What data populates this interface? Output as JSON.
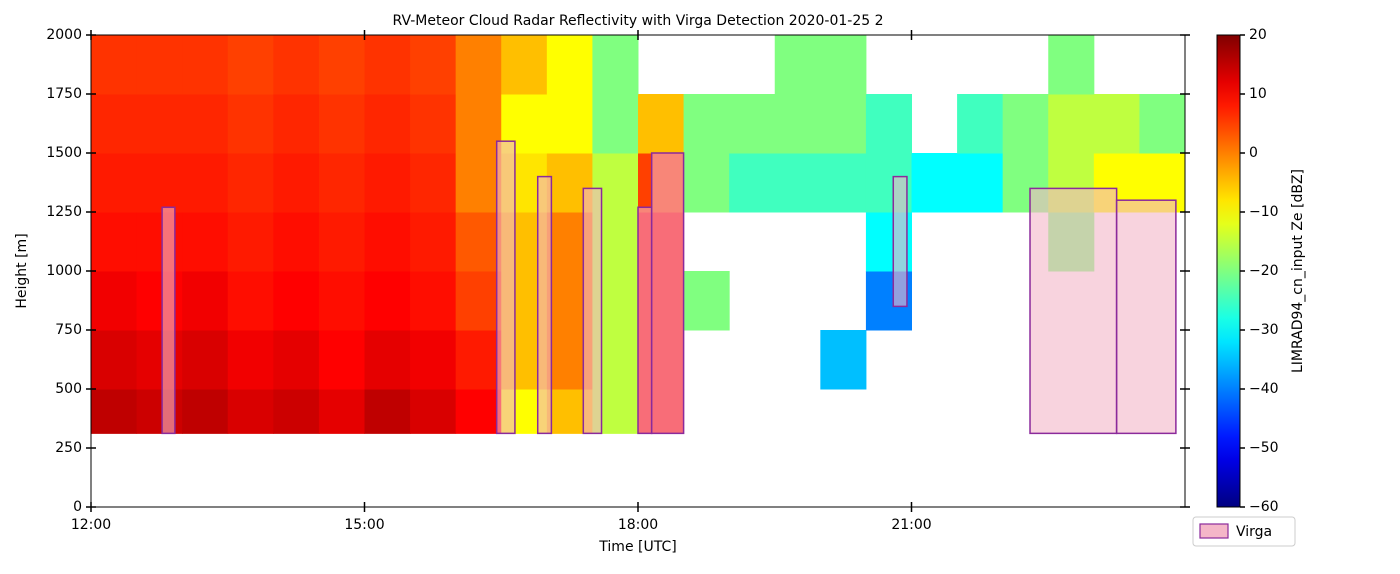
{
  "chart_data": {
    "type": "heatmap",
    "title": "RV-Meteor Cloud Radar Reflectivity with Virga Detection 2020-01-25 2",
    "x_label": "Time [UTC]",
    "y_label": "Height [m]",
    "colorbar_label": "LIMRAD94_cn_input Ze [dBZ]",
    "xlim": [
      12,
      24
    ],
    "xticks": [
      {
        "value": 12,
        "label": "12:00"
      },
      {
        "value": 15,
        "label": "15:00"
      },
      {
        "value": 18,
        "label": "18:00"
      },
      {
        "value": 21,
        "label": "21:00"
      }
    ],
    "ylim": [
      0,
      2000
    ],
    "yticks": [
      0,
      250,
      500,
      750,
      1000,
      1250,
      1500,
      1750,
      2000
    ],
    "clim": [
      -60,
      20
    ],
    "cticks": [
      {
        "value": -60,
        "label": "−60"
      },
      {
        "value": -50,
        "label": "−50"
      },
      {
        "value": -40,
        "label": "−40"
      },
      {
        "value": -30,
        "label": "−30"
      },
      {
        "value": -20,
        "label": "−20"
      },
      {
        "value": -10,
        "label": "−10"
      },
      0,
      10,
      20
    ],
    "colormap": "jet",
    "x_edges": [
      12,
      12.5,
      13,
      13.5,
      14,
      14.5,
      15,
      15.5,
      16,
      16.5,
      17,
      17.5,
      18,
      18.5,
      19,
      19.5,
      20,
      20.5,
      21,
      21.5,
      22,
      22.5,
      23,
      23.5,
      24
    ],
    "y_edges": [
      312,
      500,
      750,
      1000,
      1250,
      1500,
      1750,
      2000
    ],
    "z": [
      [
        15,
        14,
        15,
        13,
        14,
        12,
        15,
        13,
        10,
        -10,
        -5,
        -15,
        10,
        null,
        null,
        null,
        null,
        null,
        null,
        null,
        null,
        null,
        null,
        null
      ],
      [
        13,
        12,
        13,
        11,
        12,
        10,
        12,
        11,
        8,
        -5,
        0,
        -15,
        10,
        null,
        null,
        null,
        -35,
        null,
        null,
        null,
        null,
        null,
        null,
        null
      ],
      [
        11,
        10,
        11,
        9,
        10,
        9,
        10,
        9,
        5,
        -5,
        0,
        -15,
        10,
        -20,
        null,
        null,
        null,
        -40,
        null,
        null,
        null,
        null,
        null,
        null
      ],
      [
        9,
        9,
        9,
        8,
        9,
        8,
        9,
        8,
        3,
        -5,
        0,
        -15,
        10,
        null,
        null,
        null,
        null,
        -30,
        null,
        null,
        null,
        -20,
        null,
        null
      ],
      [
        8,
        8,
        8,
        7,
        8,
        7,
        8,
        7,
        0,
        -8,
        -5,
        -15,
        5,
        -20,
        -25,
        -25,
        -25,
        -25,
        -30,
        -30,
        -20,
        -15,
        -10,
        -10
      ],
      [
        7,
        7,
        7,
        6,
        7,
        6,
        7,
        6,
        0,
        -10,
        -10,
        -20,
        -5,
        -20,
        -20,
        -20,
        -20,
        -25,
        null,
        -25,
        -20,
        -15,
        -15,
        -20
      ],
      [
        6,
        6,
        6,
        5,
        6,
        5,
        6,
        5,
        0,
        -5,
        -10,
        -20,
        null,
        null,
        null,
        -20,
        -20,
        null,
        null,
        null,
        null,
        -20,
        null,
        null
      ]
    ],
    "virga": {
      "name": "Virga",
      "color": "#f4b6c8",
      "edgecolor": "#8b2a9b",
      "regions": [
        {
          "x0": 12.78,
          "x1": 12.92,
          "bottom": 312,
          "top": 1270
        },
        {
          "x0": 16.45,
          "x1": 16.65,
          "bottom": 312,
          "top": 1550
        },
        {
          "x0": 16.9,
          "x1": 17.05,
          "bottom": 312,
          "top": 1400
        },
        {
          "x0": 17.4,
          "x1": 17.6,
          "bottom": 312,
          "top": 1350
        },
        {
          "x0": 18.0,
          "x1": 18.15,
          "bottom": 312,
          "top": 1270
        },
        {
          "x0": 18.15,
          "x1": 18.5,
          "bottom": 312,
          "top": 1500
        },
        {
          "x0": 20.8,
          "x1": 20.95,
          "bottom": 850,
          "top": 1400
        },
        {
          "x0": 22.3,
          "x1": 23.25,
          "bottom": 312,
          "top": 1350
        },
        {
          "x0": 23.25,
          "x1": 23.9,
          "bottom": 312,
          "top": 1300
        }
      ]
    }
  }
}
